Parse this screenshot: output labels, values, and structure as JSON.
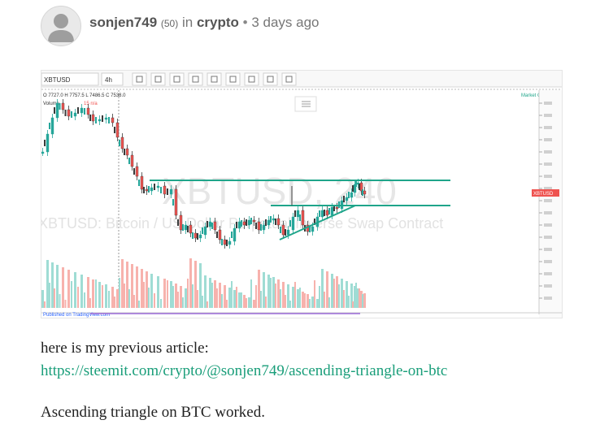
{
  "post": {
    "author": "sonjen749",
    "reputation": "(50)",
    "in_label": "in",
    "category": "crypto",
    "separator": "•",
    "time": "3 days ago"
  },
  "chart": {
    "symbol": "XBTUSD",
    "interval": "4h",
    "ohlc": "O 7727.0 H 7757.5 L 7486.5 C 7538.0",
    "volume_label": "Volume",
    "volume_value": "15 n/a",
    "status": "Market Open",
    "watermark": "XBTUSD, 240",
    "watermark_sub": "XBTUSD: Bitcoin / US Dollar Perpetual Inverse Swap Contract",
    "price_tag": "XBTUSD",
    "footer": "Published on TradingView.com",
    "colors": {
      "up": "#26a69a",
      "down": "#ef5350",
      "line": "#1fa58a",
      "candle": "#3a3a3a"
    }
  },
  "article": {
    "intro": "here is my previous article:",
    "link": "https://steemit.com/crypto/@sonjen749/ascending-triangle-on-btc",
    "conclusion": "Ascending triangle on BTC worked."
  }
}
